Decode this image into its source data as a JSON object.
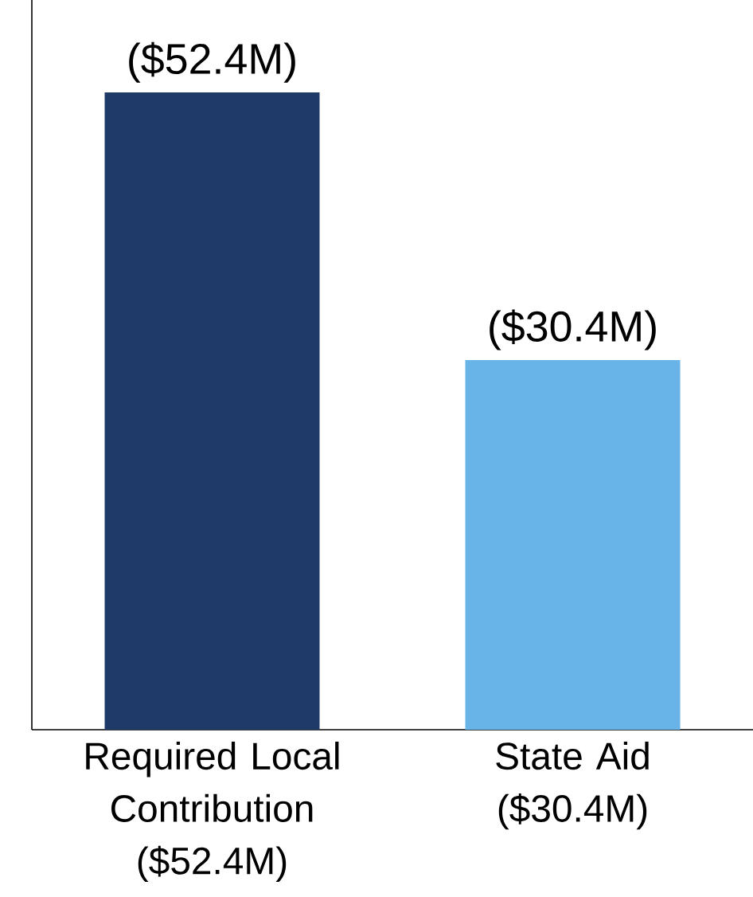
{
  "chart_data": {
    "type": "bar",
    "categories": [
      "Required Local Contribution ($52.4M)",
      "State Aid ($30.4M)"
    ],
    "values": [
      52.4,
      30.4
    ],
    "colors": [
      "#1f3a68",
      "#68b4e8"
    ],
    "value_labels": [
      "($52.4M)",
      "($30.4M)"
    ],
    "ylim": [
      0,
      60
    ]
  }
}
